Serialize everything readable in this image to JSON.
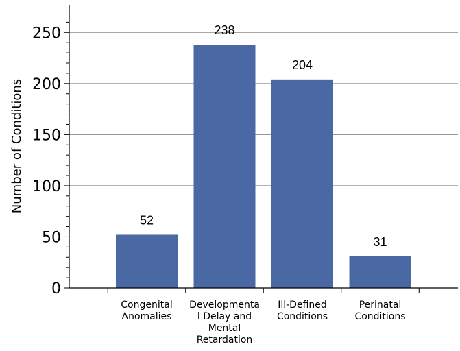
{
  "chart_data": {
    "type": "bar",
    "categories": [
      [
        "Congenital",
        "Anomalies"
      ],
      [
        "Developmenta",
        "l Delay and",
        "Mental",
        "Retardation"
      ],
      [
        "Ill-Defined",
        "Conditions"
      ],
      [
        "Perinatal",
        "Conditions"
      ]
    ],
    "values": [
      52,
      238,
      204,
      31
    ],
    "value_labels": [
      "52",
      "238",
      "204",
      "31"
    ],
    "xlabel": "",
    "ylabel": "Number of Conditions",
    "ylim": [
      0,
      275
    ],
    "yticks": [
      0,
      50,
      100,
      150,
      200,
      250
    ],
    "grid": true,
    "bar_color": "#4a68a3",
    "gridline_color": "#888888"
  }
}
